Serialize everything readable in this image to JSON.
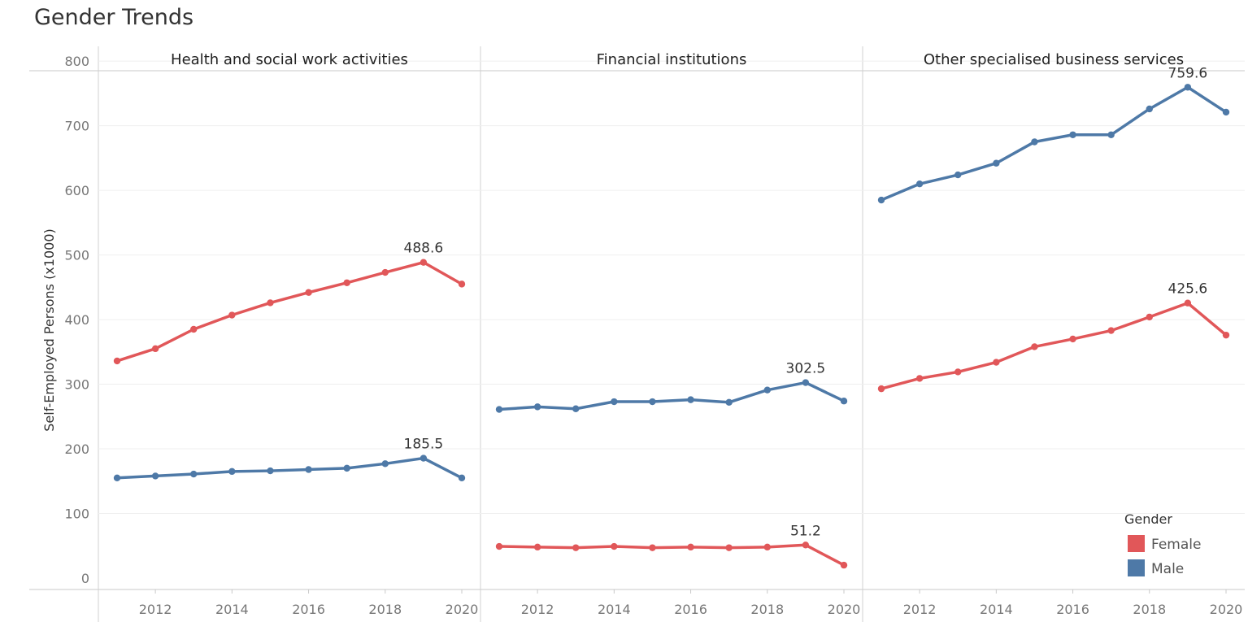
{
  "chart_data": {
    "type": "line",
    "title": "Gender Trends",
    "ylabel": "Self-Employed Persons (x1000)",
    "xlabel": "",
    "ylim": [
      0,
      800
    ],
    "yticks": [
      0,
      100,
      200,
      300,
      400,
      500,
      600,
      700,
      800
    ],
    "xlim": [
      2011,
      2020
    ],
    "xticks": [
      2012,
      2014,
      2016,
      2018,
      2020
    ],
    "x": [
      2011,
      2012,
      2013,
      2014,
      2015,
      2016,
      2017,
      2018,
      2019,
      2020
    ],
    "grid": "horizontal",
    "legend": {
      "title": "Gender",
      "position": "bottom-right",
      "items": [
        {
          "name": "Female",
          "color": "#e15759"
        },
        {
          "name": "Male",
          "color": "#4e79a7"
        }
      ]
    },
    "panels": [
      {
        "name": "Health and social work activities",
        "series": [
          {
            "name": "Female",
            "color": "#e15759",
            "values": [
              336,
              355,
              385,
              407,
              426,
              442,
              457,
              473,
              488.6,
              455
            ],
            "label": "488.6",
            "label_index": 8
          },
          {
            "name": "Male",
            "color": "#4e79a7",
            "values": [
              155,
              158,
              161,
              165,
              166,
              168,
              170,
              177,
              185.5,
              155
            ],
            "label": "185.5",
            "label_index": 8
          }
        ]
      },
      {
        "name": "Financial institutions",
        "series": [
          {
            "name": "Male",
            "color": "#4e79a7",
            "values": [
              261,
              265,
              262,
              273,
              273,
              276,
              272,
              291,
              302.5,
              274
            ],
            "label": "302.5",
            "label_index": 8
          },
          {
            "name": "Female",
            "color": "#e15759",
            "values": [
              49,
              48,
              47,
              49,
              47,
              48,
              47,
              48,
              51.2,
              20
            ],
            "label": "51.2",
            "label_index": 8
          }
        ]
      },
      {
        "name": "Other specialised business services",
        "series": [
          {
            "name": "Male",
            "color": "#4e79a7",
            "values": [
              585,
              610,
              624,
              642,
              675,
              686,
              686,
              726,
              759.6,
              721
            ],
            "label": "759.6",
            "label_index": 8
          },
          {
            "name": "Female",
            "color": "#e15759",
            "values": [
              293,
              309,
              319,
              334,
              358,
              370,
              383,
              404,
              425.6,
              376
            ],
            "label": "425.6",
            "label_index": 8
          }
        ]
      }
    ]
  }
}
